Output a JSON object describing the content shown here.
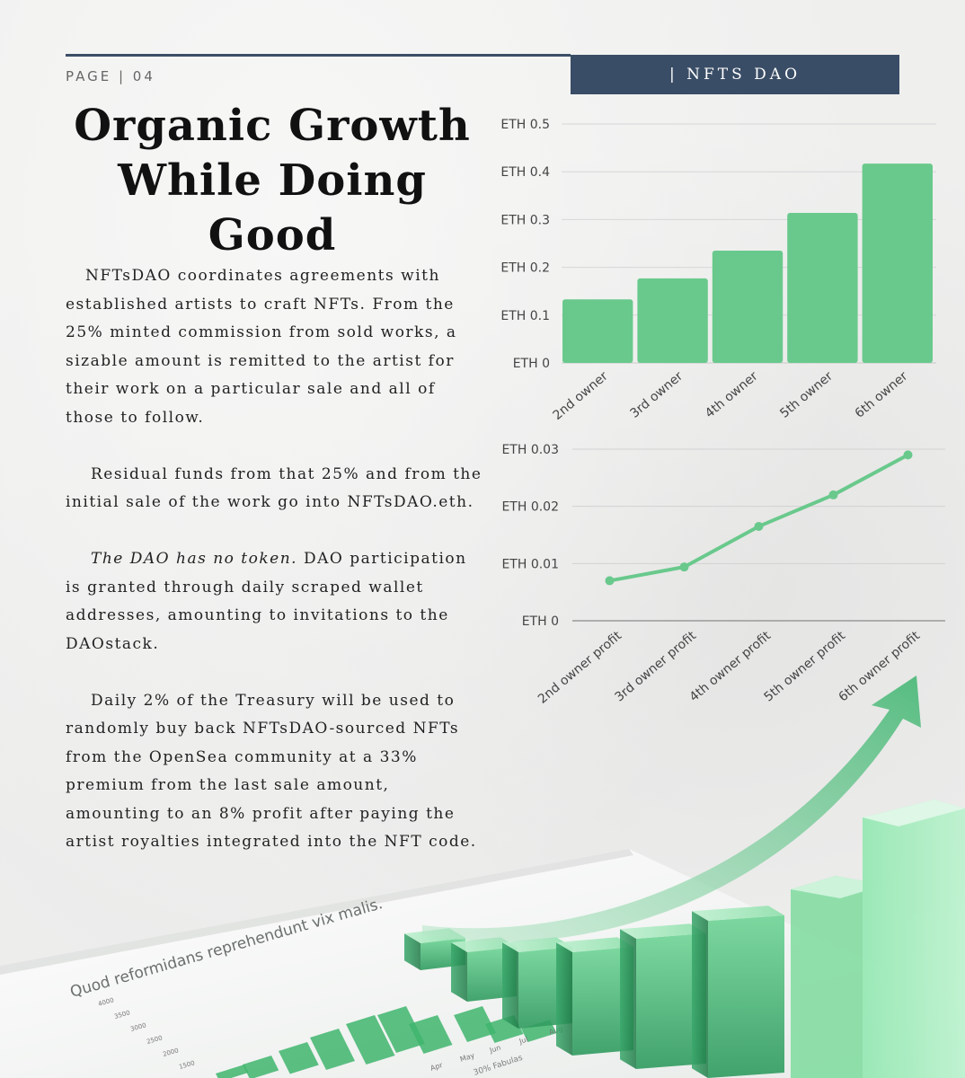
{
  "header": {
    "page_label": "PAGE | 04",
    "brand": "| NFTS DAO"
  },
  "title": {
    "line1": "Organic Growth",
    "line2": "While Doing",
    "line3": "Good"
  },
  "body": {
    "p1": "NFTsDAO coordinates agreements with established artists to craft NFTs. From the 25% minted commission from sold works, a sizable amount is remitted to the artist for their work on a particular sale and all of those to follow.",
    "p2": "Residual funds from that 25% and from the initial sale of the work go into NFTsDAO.eth.",
    "p3_em": "The DAO has no token.",
    "p3_rest": " DAO participation is granted through daily scraped wallet addresses, amounting to invitations to the DAOstack.",
    "p4": "Daily 2% of the Treasury will be used to randomly buy back NFTsDAO-sourced NFTs from the OpenSea community at a 33% premium from the last sale amount, amounting to an 8% profit after paying the artist royalties integrated into the NFT code."
  },
  "chart_data": [
    {
      "type": "bar",
      "categories": [
        "2nd owner",
        "3rd owner",
        "4th owner",
        "5th owner",
        "6th owner"
      ],
      "values": [
        0.133,
        0.177,
        0.235,
        0.314,
        0.417
      ],
      "y_ticks": [
        "ETH 0",
        "ETH 0.1",
        "ETH 0.2",
        "ETH 0.3",
        "ETH 0.4",
        "ETH 0.5"
      ],
      "ylim": [
        0,
        0.5
      ],
      "grid": true,
      "color": "#69c98c"
    },
    {
      "type": "line",
      "categories": [
        "2nd owner profit",
        "3rd owner profit",
        "4th owner profit",
        "5th owner profit",
        "6th owner profit"
      ],
      "values": [
        0.007,
        0.0094,
        0.0165,
        0.022,
        0.029
      ],
      "y_ticks": [
        "ETH 0",
        "ETH 0.01",
        "ETH 0.02",
        "ETH 0.03"
      ],
      "ylim": [
        0,
        0.03
      ],
      "grid": true,
      "color": "#69c98c"
    }
  ],
  "decor": {
    "paper_title": "Quod reformidans reprehendunt vix malis.",
    "paper_y_ticks": [
      "1500",
      "2000",
      "2500",
      "3000",
      "3500",
      "4000"
    ],
    "paper_x_labels": [
      "Apr",
      "May",
      "Jun",
      "Jul",
      "Aug"
    ],
    "paper_footer": "30% Fabulas"
  }
}
